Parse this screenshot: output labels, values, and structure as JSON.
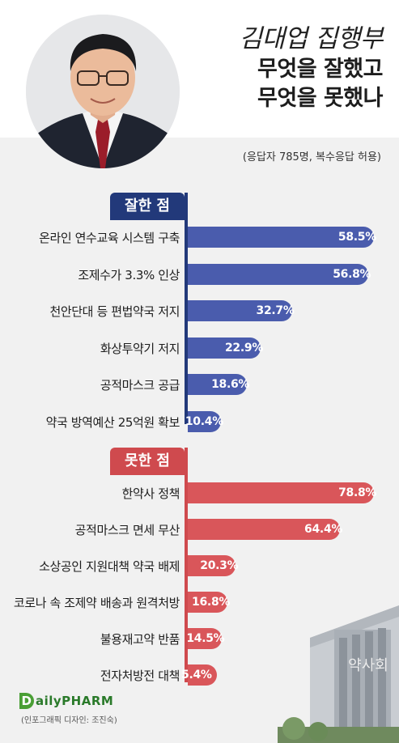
{
  "header": {
    "name": "김대업 집행부",
    "line1": "무엇을 잘했고",
    "line2": "무엇을 못했나",
    "note": "(응답자 785명, 복수응답 허용)"
  },
  "colors": {
    "good": "#4a5cad",
    "bad": "#d9565a",
    "good_tab": "#22397a",
    "bad_tab": "#cf4a4e"
  },
  "chart_data": [
    {
      "type": "bar",
      "title": "잘한 점",
      "categories": [
        "온라인 연수교육 시스템 구축",
        "조제수가 3.3% 인상",
        "천안단대 등 편법약국 저지",
        "화상투약기 저지",
        "공적마스크 공급",
        "약국 방역예산 25억원 확보"
      ],
      "values": [
        58.5,
        56.8,
        32.7,
        22.9,
        18.6,
        10.4
      ],
      "value_labels": [
        "58.5%",
        "56.8%",
        "32.7%",
        "22.9%",
        "18.6%",
        "10.4%"
      ],
      "unit": "%"
    },
    {
      "type": "bar",
      "title": "못한 점",
      "categories": [
        "한약사 정책",
        "공적마스크 면세 무산",
        "소상공인 지원대책 약국 배제",
        "코로나 속 조제약 배송과 원격처방",
        "불용재고약 반품",
        "전자처방전 대책"
      ],
      "values": [
        78.8,
        64.4,
        20.3,
        16.8,
        14.5,
        5.4
      ],
      "value_labels": [
        "78.8%",
        "64.4%",
        "20.3%",
        "16.8%",
        "14.5%",
        "5.4%"
      ],
      "unit": "%"
    }
  ],
  "footer": {
    "logo": "ailyPHARM",
    "logo_initial": "D",
    "credit": "(인포그래픽 디자인: 조진숙)"
  }
}
